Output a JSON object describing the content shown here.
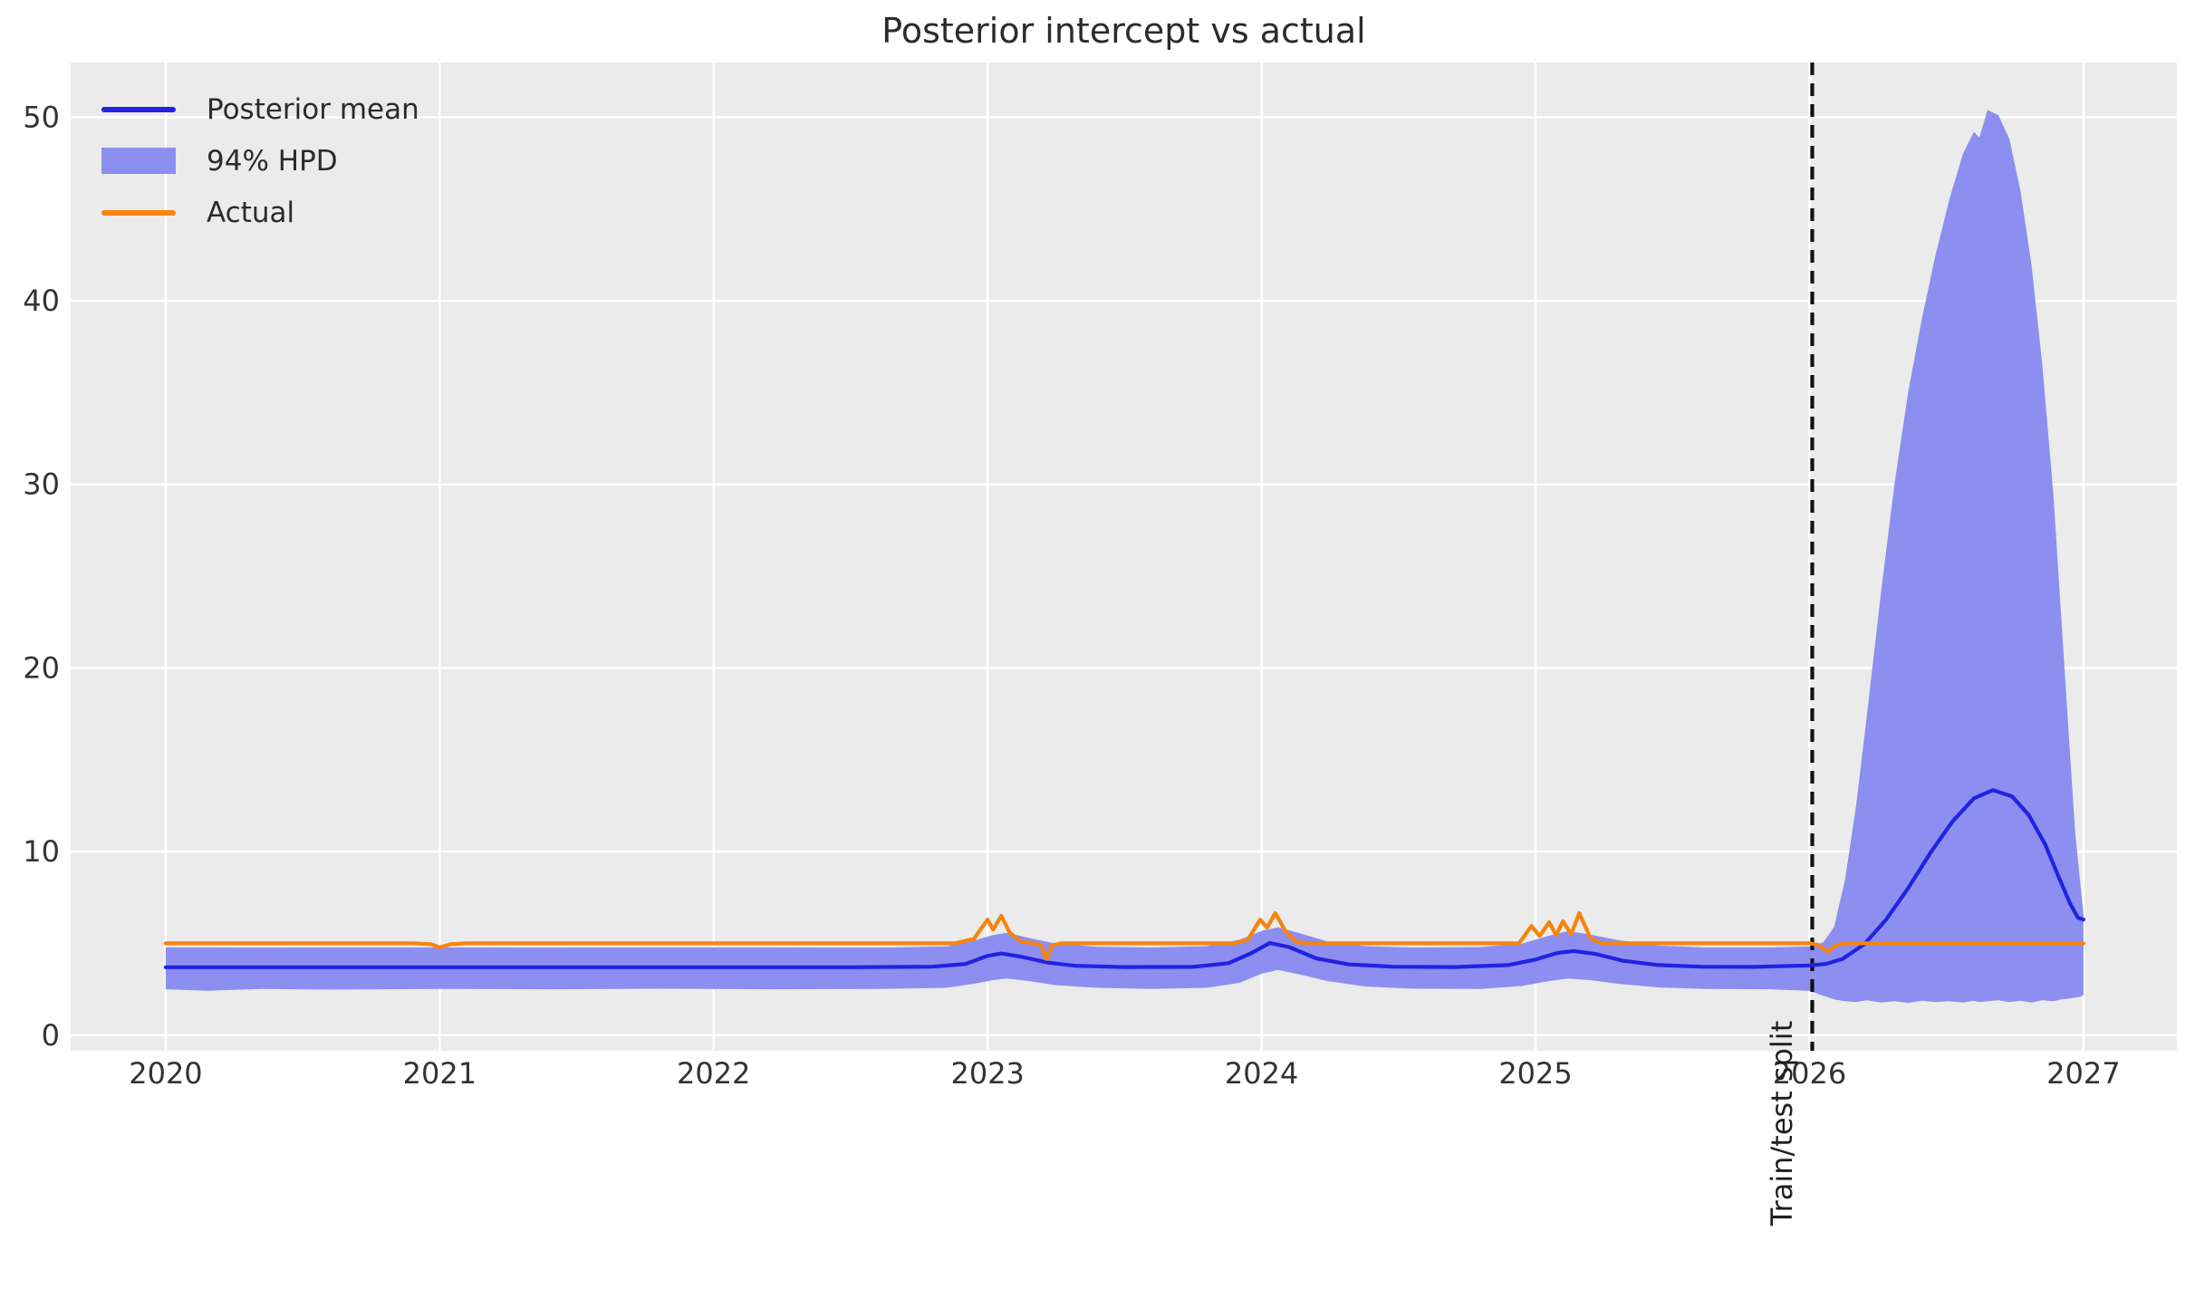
{
  "title": "Posterior intercept vs actual",
  "legend": {
    "items": [
      {
        "label": "Posterior mean",
        "type": "line",
        "color": "#2222e2"
      },
      {
        "label": "94% HPD",
        "type": "patch",
        "color": "#8c8ff0"
      },
      {
        "label": "Actual",
        "type": "line",
        "color": "#f8830d"
      }
    ]
  },
  "annotations": {
    "train_test_split": "Train/test split"
  },
  "colors": {
    "figure_background": "#ffffff",
    "axes_background": "#ebebeb",
    "gridline": "#ffffff",
    "posterior_mean": "#2222e2",
    "hpd_band": "#8c8ff0",
    "actual": "#f8830d",
    "split_line": "#111111",
    "tick_text": "#333333",
    "title_text": "#2b2b2b"
  },
  "chart_data": {
    "type": "line",
    "title": "Posterior intercept vs actual",
    "xlabel": "",
    "ylabel": "",
    "grid": true,
    "legend_position": "upper left",
    "x_axis": {
      "ticks": [
        2020,
        2021,
        2022,
        2023,
        2024,
        2025,
        2026,
        2027
      ],
      "tick_labels": [
        "2020",
        "2021",
        "2022",
        "2023",
        "2024",
        "2025",
        "2026",
        "2027"
      ],
      "range": [
        2019.653,
        2027.341
      ]
    },
    "y_axis": {
      "ticks": [
        0,
        10,
        20,
        30,
        40,
        50
      ],
      "tick_labels": [
        "0",
        "10",
        "20",
        "30",
        "40",
        "50"
      ],
      "range": [
        -0.85,
        52.98
      ]
    },
    "split_x": 2026.01,
    "series": [
      {
        "name": "Posterior mean",
        "kind": "line",
        "color": "#2222e2",
        "points": [
          [
            2020.0,
            3.7
          ],
          [
            2020.5,
            3.7
          ],
          [
            2021.0,
            3.7
          ],
          [
            2021.5,
            3.7
          ],
          [
            2022.0,
            3.7
          ],
          [
            2022.5,
            3.7
          ],
          [
            2022.8,
            3.73
          ],
          [
            2022.92,
            3.88
          ],
          [
            2023.0,
            4.32
          ],
          [
            2023.05,
            4.45
          ],
          [
            2023.12,
            4.28
          ],
          [
            2023.22,
            3.95
          ],
          [
            2023.32,
            3.78
          ],
          [
            2023.5,
            3.71
          ],
          [
            2023.75,
            3.72
          ],
          [
            2023.88,
            3.92
          ],
          [
            2023.96,
            4.45
          ],
          [
            2024.03,
            5.02
          ],
          [
            2024.1,
            4.8
          ],
          [
            2024.2,
            4.18
          ],
          [
            2024.32,
            3.85
          ],
          [
            2024.48,
            3.73
          ],
          [
            2024.7,
            3.71
          ],
          [
            2024.9,
            3.82
          ],
          [
            2025.0,
            4.12
          ],
          [
            2025.08,
            4.48
          ],
          [
            2025.14,
            4.58
          ],
          [
            2025.22,
            4.42
          ],
          [
            2025.32,
            4.05
          ],
          [
            2025.45,
            3.82
          ],
          [
            2025.6,
            3.73
          ],
          [
            2025.8,
            3.72
          ],
          [
            2026.0,
            3.8
          ],
          [
            2026.06,
            3.88
          ],
          [
            2026.12,
            4.15
          ],
          [
            2026.2,
            4.95
          ],
          [
            2026.28,
            6.3
          ],
          [
            2026.36,
            8.0
          ],
          [
            2026.44,
            9.9
          ],
          [
            2026.52,
            11.6
          ],
          [
            2026.6,
            12.9
          ],
          [
            2026.67,
            13.35
          ],
          [
            2026.74,
            13.0
          ],
          [
            2026.8,
            12.0
          ],
          [
            2026.86,
            10.4
          ],
          [
            2026.91,
            8.6
          ],
          [
            2026.95,
            7.2
          ],
          [
            2026.98,
            6.4
          ],
          [
            2027.0,
            6.3
          ]
        ]
      },
      {
        "name": "Actual",
        "kind": "line",
        "color": "#f8830d",
        "points": [
          [
            2020.0,
            5.0
          ],
          [
            2020.9,
            5.0
          ],
          [
            2020.97,
            4.95
          ],
          [
            2021.0,
            4.78
          ],
          [
            2021.04,
            4.95
          ],
          [
            2021.1,
            5.0
          ],
          [
            2022.88,
            5.0
          ],
          [
            2022.95,
            5.25
          ],
          [
            2023.0,
            6.3
          ],
          [
            2023.02,
            5.75
          ],
          [
            2023.05,
            6.5
          ],
          [
            2023.08,
            5.6
          ],
          [
            2023.12,
            5.1
          ],
          [
            2023.17,
            5.0
          ],
          [
            2023.195,
            4.9
          ],
          [
            2023.215,
            4.15
          ],
          [
            2023.235,
            4.9
          ],
          [
            2023.27,
            5.0
          ],
          [
            2023.9,
            5.0
          ],
          [
            2023.95,
            5.2
          ],
          [
            2023.995,
            6.3
          ],
          [
            2024.02,
            5.85
          ],
          [
            2024.05,
            6.65
          ],
          [
            2024.09,
            5.6
          ],
          [
            2024.13,
            5.05
          ],
          [
            2024.2,
            5.0
          ],
          [
            2024.94,
            5.0
          ],
          [
            2024.985,
            5.95
          ],
          [
            2025.015,
            5.4
          ],
          [
            2025.05,
            6.15
          ],
          [
            2025.075,
            5.45
          ],
          [
            2025.1,
            6.2
          ],
          [
            2025.13,
            5.5
          ],
          [
            2025.16,
            6.65
          ],
          [
            2025.2,
            5.3
          ],
          [
            2025.24,
            5.0
          ],
          [
            2026.0,
            5.0
          ],
          [
            2026.03,
            4.93
          ],
          [
            2026.065,
            4.55
          ],
          [
            2026.1,
            4.93
          ],
          [
            2026.14,
            5.0
          ],
          [
            2027.0,
            5.0
          ]
        ]
      },
      {
        "name": "94% HPD",
        "kind": "band",
        "color": "#8c8ff0",
        "points": [
          [
            2020.0,
            2.5,
            4.78
          ],
          [
            2020.15,
            2.42,
            4.78
          ],
          [
            2020.35,
            2.52,
            4.77
          ],
          [
            2020.6,
            2.48,
            4.78
          ],
          [
            2021.0,
            2.52,
            4.78
          ],
          [
            2021.4,
            2.5,
            4.77
          ],
          [
            2021.8,
            2.53,
            4.78
          ],
          [
            2022.2,
            2.5,
            4.78
          ],
          [
            2022.6,
            2.52,
            4.77
          ],
          [
            2022.85,
            2.58,
            4.84
          ],
          [
            2022.95,
            2.8,
            5.15
          ],
          [
            2023.02,
            3.0,
            5.45
          ],
          [
            2023.07,
            3.08,
            5.58
          ],
          [
            2023.15,
            2.95,
            5.3
          ],
          [
            2023.25,
            2.72,
            4.98
          ],
          [
            2023.4,
            2.58,
            4.82
          ],
          [
            2023.6,
            2.52,
            4.78
          ],
          [
            2023.8,
            2.58,
            4.85
          ],
          [
            2023.92,
            2.85,
            5.2
          ],
          [
            2024.0,
            3.35,
            5.68
          ],
          [
            2024.06,
            3.55,
            5.88
          ],
          [
            2024.14,
            3.3,
            5.55
          ],
          [
            2024.24,
            2.95,
            5.1
          ],
          [
            2024.38,
            2.65,
            4.85
          ],
          [
            2024.55,
            2.53,
            4.78
          ],
          [
            2024.8,
            2.52,
            4.8
          ],
          [
            2024.95,
            2.68,
            4.98
          ],
          [
            2025.05,
            2.95,
            5.42
          ],
          [
            2025.12,
            3.08,
            5.68
          ],
          [
            2025.2,
            3.0,
            5.48
          ],
          [
            2025.3,
            2.8,
            5.18
          ],
          [
            2025.45,
            2.6,
            4.88
          ],
          [
            2025.62,
            2.52,
            4.78
          ],
          [
            2025.85,
            2.5,
            4.78
          ],
          [
            2026.0,
            2.42,
            4.84
          ],
          [
            2026.05,
            2.15,
            5.05
          ],
          [
            2026.09,
            1.95,
            5.9
          ],
          [
            2026.13,
            1.85,
            8.5
          ],
          [
            2026.17,
            1.8,
            12.5
          ],
          [
            2026.21,
            1.9,
            17.5
          ],
          [
            2026.26,
            1.78,
            24.0
          ],
          [
            2026.31,
            1.85,
            30.0
          ],
          [
            2026.36,
            1.75,
            35.0
          ],
          [
            2026.41,
            1.88,
            39.0
          ],
          [
            2026.46,
            1.8,
            42.5
          ],
          [
            2026.51,
            1.85,
            45.5
          ],
          [
            2026.56,
            1.78,
            48.0
          ],
          [
            2026.6,
            1.88,
            49.2
          ],
          [
            2026.62,
            1.8,
            48.9
          ],
          [
            2026.65,
            1.85,
            50.4
          ],
          [
            2026.69,
            1.9,
            50.1
          ],
          [
            2026.73,
            1.8,
            48.8
          ],
          [
            2026.77,
            1.88,
            46.0
          ],
          [
            2026.81,
            1.78,
            42.0
          ],
          [
            2026.85,
            1.9,
            36.5
          ],
          [
            2026.89,
            1.85,
            29.5
          ],
          [
            2026.92,
            1.95,
            22.5
          ],
          [
            2026.95,
            2.0,
            15.5
          ],
          [
            2026.97,
            2.05,
            11.0
          ],
          [
            2026.99,
            2.1,
            8.0
          ],
          [
            2027.0,
            2.2,
            6.6
          ]
        ]
      }
    ]
  }
}
